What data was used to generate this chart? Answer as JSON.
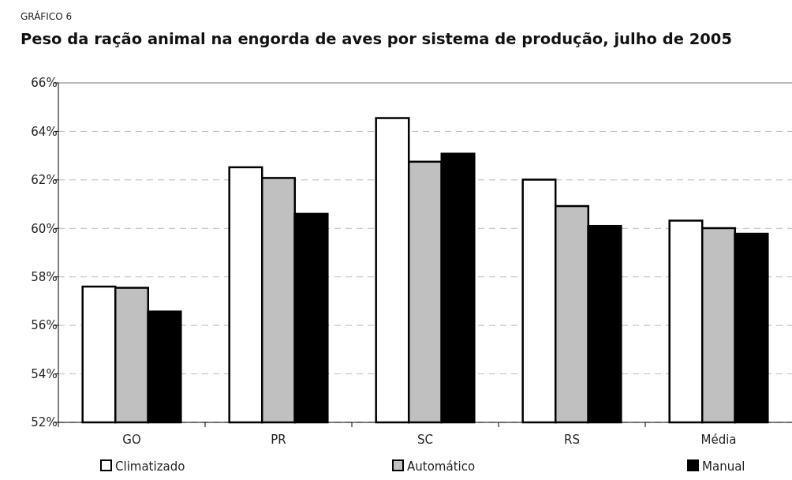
{
  "chart_data": {
    "type": "bar",
    "subtitle": "GRÁFICO 6",
    "title": "Peso da ração animal na engorda de aves por sistema de produção, julho de 2005",
    "categories": [
      "GO",
      "PR",
      "SC",
      "RS",
      "Média"
    ],
    "series": [
      {
        "name": "Climatizado",
        "color": "#ffffff",
        "values": [
          57.6,
          62.52,
          64.55,
          62.01,
          60.32
        ]
      },
      {
        "name": "Automático",
        "color": "#c0c0c0",
        "values": [
          57.55,
          62.08,
          62.75,
          60.92,
          60.01
        ]
      },
      {
        "name": "Manual",
        "color": "#000000",
        "values": [
          56.57,
          60.6,
          63.08,
          60.1,
          59.78
        ]
      }
    ],
    "ylim": [
      52,
      66
    ],
    "yticks": [
      {
        "value": 52,
        "label": "52%"
      },
      {
        "value": 54,
        "label": "54%"
      },
      {
        "value": 56,
        "label": "56%"
      },
      {
        "value": 58,
        "label": "58%"
      },
      {
        "value": 60,
        "label": "60%"
      },
      {
        "value": 62,
        "label": "62%"
      },
      {
        "value": 64,
        "label": "64%"
      },
      {
        "value": 66,
        "label": "66%"
      }
    ],
    "grid": "y",
    "legend": "bottom"
  }
}
